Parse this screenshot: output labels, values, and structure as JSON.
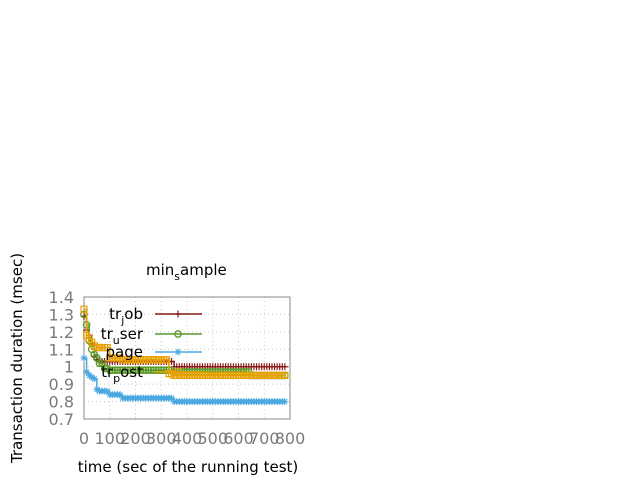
{
  "chart_data": {
    "type": "line",
    "title_main": "min",
    "title_sub": "s",
    "title_rest": "ample",
    "xlabel": "time (sec of the running test)",
    "ylabel": "Transaction duration (msec)",
    "xlim": [
      0,
      800
    ],
    "ylim": [
      0.7,
      1.4
    ],
    "xticks": [
      0,
      100,
      200,
      300,
      400,
      500,
      600,
      700,
      800
    ],
    "yticks": [
      0.7,
      0.8,
      0.9,
      1,
      1.1,
      1.2,
      1.3,
      1.4
    ],
    "grid": true,
    "legend_position": "top-right",
    "series": [
      {
        "name_main": "tr",
        "name_sub": "j",
        "name_rest": "ob",
        "color": "#8b1a1a",
        "marker": "plus",
        "x": [
          0,
          10,
          20,
          30,
          40,
          50,
          60,
          80,
          100,
          150,
          200,
          250,
          300,
          330,
          350,
          400,
          450,
          500,
          550,
          600,
          650,
          700,
          750,
          780
        ],
        "y": [
          1.29,
          1.21,
          1.18,
          1.13,
          1.06,
          1.04,
          1.03,
          1.03,
          1.03,
          1.03,
          1.03,
          1.03,
          1.03,
          1.03,
          1.0,
          1.0,
          1.0,
          1.0,
          1.0,
          1.0,
          1.0,
          1.0,
          1.0,
          1.0
        ]
      },
      {
        "name_main": "tr",
        "name_sub": "u",
        "name_rest": "ser",
        "color": "#5a9a28",
        "marker": "circle",
        "x": [
          0,
          10,
          20,
          30,
          40,
          50,
          60,
          80,
          100,
          150,
          200,
          250,
          300,
          330,
          350,
          400,
          450,
          500,
          550,
          600,
          650,
          700,
          750,
          780
        ],
        "y": [
          1.3,
          1.24,
          1.15,
          1.1,
          1.07,
          1.05,
          1.02,
          0.99,
          0.98,
          0.98,
          0.98,
          0.98,
          0.98,
          0.98,
          0.97,
          0.97,
          0.97,
          0.97,
          0.97,
          0.97,
          0.95,
          0.95,
          0.95,
          0.95
        ]
      },
      {
        "name_main": "page",
        "name_sub": "",
        "name_rest": "",
        "color": "#4aa8e0",
        "marker": "star",
        "x": [
          0,
          10,
          20,
          30,
          40,
          50,
          60,
          80,
          100,
          150,
          200,
          250,
          300,
          330,
          350,
          400,
          450,
          500,
          550,
          600,
          650,
          700,
          750,
          780
        ],
        "y": [
          1.05,
          0.97,
          0.95,
          0.94,
          0.93,
          0.87,
          0.86,
          0.86,
          0.84,
          0.82,
          0.82,
          0.82,
          0.82,
          0.82,
          0.8,
          0.8,
          0.8,
          0.8,
          0.8,
          0.8,
          0.8,
          0.8,
          0.8,
          0.8
        ]
      },
      {
        "name_main": "tr",
        "name_sub": "p",
        "name_rest": "ost",
        "color": "#e8a000",
        "marker": "square",
        "x": [
          0,
          10,
          20,
          30,
          40,
          50,
          60,
          80,
          100,
          150,
          200,
          250,
          300,
          330,
          350,
          400,
          450,
          500,
          550,
          600,
          650,
          700,
          750,
          780
        ],
        "y": [
          1.33,
          1.18,
          1.16,
          1.14,
          1.12,
          1.11,
          1.11,
          1.11,
          1.05,
          1.04,
          1.04,
          1.04,
          1.04,
          0.96,
          0.95,
          0.95,
          0.95,
          0.95,
          0.95,
          0.95,
          0.95,
          0.95,
          0.95,
          0.95
        ]
      }
    ]
  }
}
